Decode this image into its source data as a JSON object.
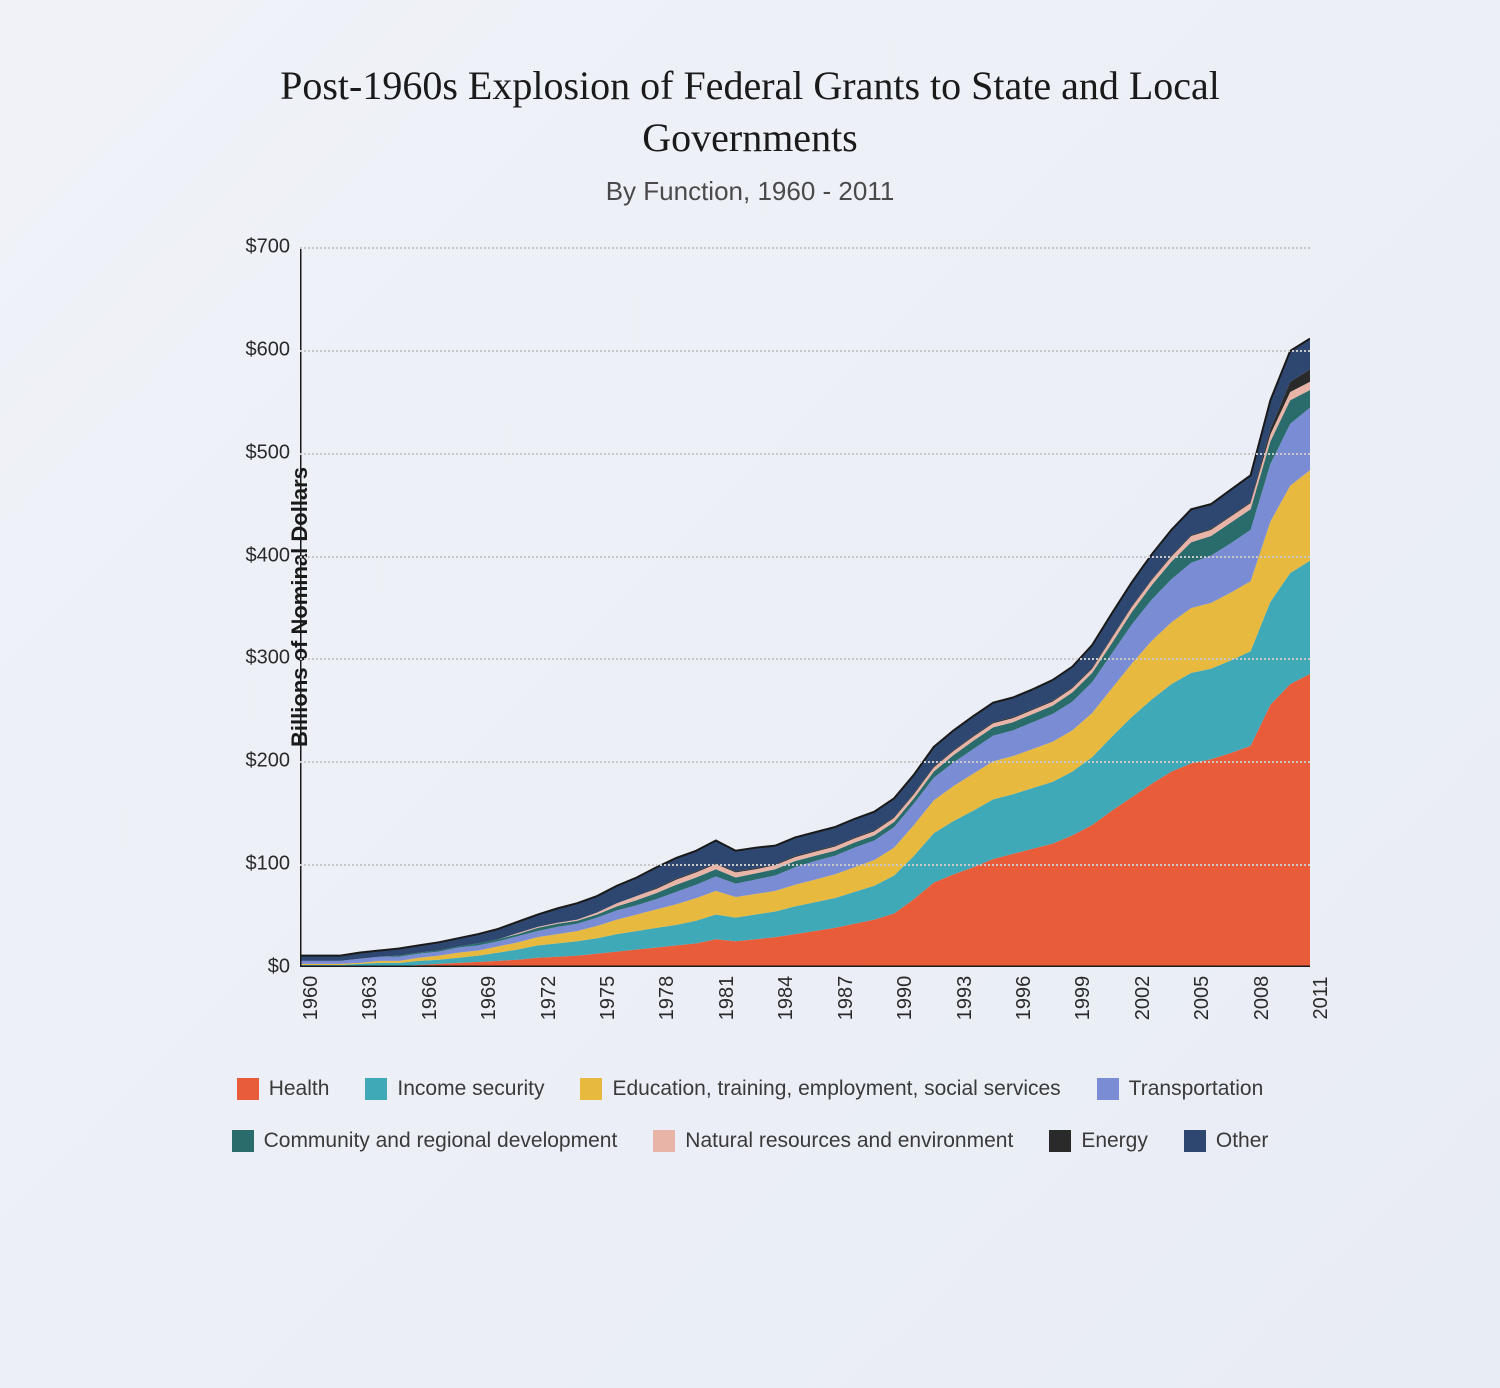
{
  "chart": {
    "type": "stacked-area",
    "title": "Post-1960s Explosion of Federal Grants to State and Local Governments",
    "subtitle": "By Function, 1960 - 2011",
    "ylabel": "Billions of Nominal Dollars",
    "background_gradient": [
      "#f0f2f8",
      "#e8ecf4"
    ],
    "title_fontsize": 40,
    "subtitle_fontsize": 26,
    "ylabel_fontsize": 22,
    "tick_fontsize": 20,
    "legend_fontsize": 21,
    "grid_color": "#c8c8c8",
    "axis_color": "#1a1a1a",
    "ylim": [
      0,
      700
    ],
    "ytick_step": 100,
    "yticks": [
      "$0",
      "$100",
      "$200",
      "$300",
      "$400",
      "$500",
      "$600",
      "$700"
    ],
    "years": [
      1960,
      1961,
      1962,
      1963,
      1964,
      1965,
      1966,
      1967,
      1968,
      1969,
      1970,
      1971,
      1972,
      1973,
      1974,
      1975,
      1976,
      1977,
      1978,
      1979,
      1980,
      1981,
      1982,
      1983,
      1984,
      1985,
      1986,
      1987,
      1988,
      1989,
      1990,
      1991,
      1992,
      1993,
      1994,
      1995,
      1996,
      1997,
      1998,
      1999,
      2000,
      2001,
      2002,
      2003,
      2004,
      2005,
      2006,
      2007,
      2008,
      2009,
      2010,
      2011
    ],
    "xtick_years": [
      1960,
      1963,
      1966,
      1969,
      1972,
      1975,
      1978,
      1981,
      1984,
      1987,
      1990,
      1993,
      1996,
      1999,
      2002,
      2005,
      2008,
      2011
    ],
    "series": [
      {
        "name": "Health",
        "color": "#e85c3a",
        "legend": "Health",
        "values": [
          0,
          0,
          0,
          0,
          1,
          1,
          2,
          3,
          4,
          5,
          6,
          7,
          9,
          10,
          11,
          13,
          15,
          17,
          19,
          21,
          23,
          27,
          25,
          27,
          29,
          32,
          35,
          38,
          42,
          46,
          52,
          66,
          82,
          90,
          97,
          105,
          110,
          115,
          120,
          128,
          138,
          152,
          165,
          178,
          190,
          198,
          202,
          208,
          215,
          255,
          275,
          285
        ]
      },
      {
        "name": "IncomeSecurity",
        "color": "#3fa9b8",
        "legend": "Income security",
        "values": [
          2,
          2,
          2,
          3,
          3,
          3,
          4,
          4,
          5,
          6,
          8,
          10,
          12,
          13,
          14,
          15,
          17,
          18,
          19,
          20,
          22,
          24,
          23,
          24,
          25,
          27,
          28,
          29,
          31,
          33,
          37,
          42,
          48,
          52,
          55,
          58,
          58,
          59,
          60,
          62,
          66,
          72,
          78,
          82,
          85,
          88,
          88,
          90,
          92,
          100,
          108,
          110
        ]
      },
      {
        "name": "Education",
        "color": "#e8b93f",
        "legend": "Education, training, employment, social services",
        "values": [
          1,
          1,
          1,
          1,
          2,
          2,
          3,
          4,
          5,
          5,
          6,
          7,
          8,
          9,
          10,
          12,
          14,
          16,
          18,
          20,
          22,
          23,
          20,
          20,
          20,
          21,
          22,
          23,
          24,
          25,
          27,
          30,
          32,
          34,
          36,
          37,
          37,
          38,
          39,
          40,
          43,
          47,
          52,
          57,
          60,
          63,
          64,
          66,
          68,
          78,
          85,
          88
        ]
      },
      {
        "name": "Transportation",
        "color": "#7a8cd4",
        "legend": "Transportation",
        "values": [
          3,
          3,
          3,
          4,
          4,
          4,
          4,
          4,
          5,
          5,
          5,
          6,
          6,
          7,
          7,
          8,
          9,
          9,
          10,
          12,
          13,
          14,
          13,
          14,
          15,
          17,
          18,
          18,
          19,
          19,
          20,
          21,
          22,
          23,
          24,
          25,
          25,
          26,
          27,
          28,
          30,
          34,
          38,
          40,
          42,
          44,
          46,
          48,
          50,
          56,
          60,
          61
        ]
      },
      {
        "name": "Community",
        "color": "#2a6b6b",
        "legend": "Community and regional development",
        "values": [
          0,
          0,
          0,
          0,
          0,
          1,
          1,
          1,
          1,
          2,
          2,
          2,
          3,
          3,
          3,
          3,
          4,
          5,
          6,
          7,
          7,
          7,
          6,
          6,
          6,
          6,
          5,
          5,
          5,
          5,
          5,
          5,
          6,
          7,
          8,
          8,
          8,
          8,
          8,
          9,
          9,
          10,
          12,
          14,
          17,
          20,
          19,
          20,
          20,
          22,
          23,
          17
        ]
      },
      {
        "name": "Natural",
        "color": "#e8b4a8",
        "legend": "Natural resources and environment",
        "values": [
          0,
          0,
          0,
          0,
          0,
          0,
          0,
          0,
          0,
          0,
          0,
          1,
          1,
          1,
          1,
          2,
          3,
          4,
          4,
          5,
          5,
          5,
          5,
          4,
          4,
          4,
          4,
          4,
          4,
          4,
          4,
          4,
          4,
          4,
          4,
          4,
          4,
          4,
          4,
          4,
          4,
          5,
          5,
          5,
          5,
          6,
          6,
          6,
          6,
          7,
          8,
          8
        ]
      },
      {
        "name": "Energy",
        "color": "#2a2a2a",
        "legend": "Energy",
        "values": [
          0,
          0,
          0,
          0,
          0,
          0,
          0,
          0,
          0,
          0,
          0,
          0,
          0,
          0,
          0,
          0,
          0,
          0,
          1,
          1,
          1,
          1,
          1,
          1,
          1,
          1,
          1,
          1,
          1,
          1,
          1,
          1,
          1,
          1,
          1,
          1,
          1,
          1,
          1,
          1,
          1,
          1,
          1,
          1,
          1,
          1,
          1,
          1,
          1,
          5,
          10,
          12
        ]
      },
      {
        "name": "Other",
        "color": "#2e4770",
        "legend": "Other",
        "values": [
          5,
          5,
          5,
          6,
          6,
          7,
          7,
          8,
          8,
          9,
          10,
          11,
          12,
          14,
          16,
          16,
          17,
          18,
          20,
          20,
          20,
          22,
          20,
          20,
          18,
          18,
          18,
          18,
          18,
          18,
          18,
          18,
          19,
          19,
          19,
          19,
          19,
          19,
          20,
          20,
          22,
          23,
          23,
          24,
          25,
          25,
          24,
          25,
          26,
          28,
          30,
          30
        ]
      }
    ]
  }
}
